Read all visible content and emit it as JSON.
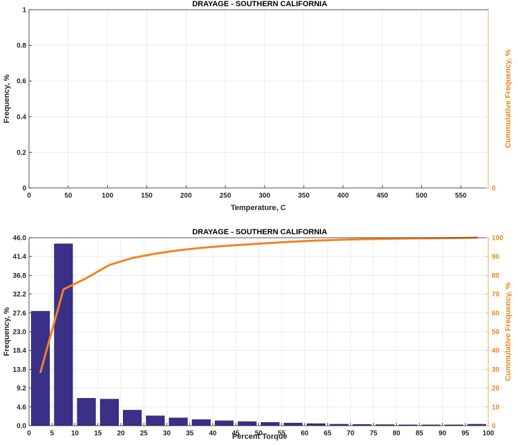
{
  "colors": {
    "bar": "#3a3087",
    "cumulative": "#f5821f",
    "right_axis": "#f5a44a",
    "grid": "#e6e6e6",
    "axis": "#262626"
  },
  "chart_data": [
    {
      "type": "bar",
      "title": "DRAYAGE - SOUTHERN CALIFORNIA",
      "xlabel": "Temperature, C",
      "ylabel": "Frequency, %",
      "y2label": "Cummulative Frequency, %",
      "xlim": [
        0,
        585
      ],
      "ylim": [
        0,
        1
      ],
      "y2lim": [
        0,
        100
      ],
      "xticks": [
        "0",
        "50",
        "100",
        "150",
        "200",
        "250",
        "300",
        "350",
        "400",
        "450",
        "500",
        "550"
      ],
      "yticks": [
        "0",
        "0.2",
        "0.4",
        "0.6",
        "0.8",
        "1"
      ],
      "y2ticks": [
        "0"
      ],
      "grid": true,
      "series": []
    },
    {
      "type": "bar",
      "title": "DRAYAGE - SOUTHERN CALIFORNIA",
      "xlabel": "Percent Torque",
      "ylabel": "Frequency, %",
      "y2label": "Cummulative Frequency, %",
      "xlim": [
        0,
        100
      ],
      "ylim": [
        0,
        46
      ],
      "y2lim": [
        0,
        100
      ],
      "xticks": [
        "0",
        "5",
        "10",
        "15",
        "20",
        "25",
        "30",
        "35",
        "40",
        "45",
        "50",
        "55",
        "60",
        "65",
        "70",
        "75",
        "80",
        "85",
        "90",
        "95",
        "100"
      ],
      "yticks": [
        "0.0",
        "4.6",
        "9.2",
        "13.8",
        "18.4",
        "23.0",
        "27.6",
        "32.2",
        "36.8",
        "41.4",
        "46.0"
      ],
      "y2ticks": [
        "0",
        "10",
        "20",
        "30",
        "40",
        "50",
        "60",
        "70",
        "80",
        "90",
        "100"
      ],
      "grid": true,
      "categories": [
        2.5,
        7.5,
        12.5,
        17.5,
        22.5,
        27.5,
        32.5,
        37.5,
        42.5,
        47.5,
        52.5,
        57.5,
        62.5,
        67.5,
        72.5,
        77.5,
        82.5,
        87.5,
        92.5,
        97.5
      ],
      "values": [
        28.0,
        44.5,
        6.7,
        6.5,
        3.8,
        2.4,
        1.9,
        1.5,
        1.2,
        1.0,
        0.8,
        0.65,
        0.5,
        0.35,
        0.3,
        0.25,
        0.2,
        0.2,
        0.2,
        0.35
      ],
      "cumulative": [
        28.5,
        72.5,
        78.5,
        85.5,
        89.2,
        91.5,
        93.3,
        94.6,
        95.6,
        96.4,
        97.2,
        97.9,
        98.5,
        98.9,
        99.2,
        99.4,
        99.6,
        99.7,
        99.8,
        100.0
      ]
    }
  ]
}
